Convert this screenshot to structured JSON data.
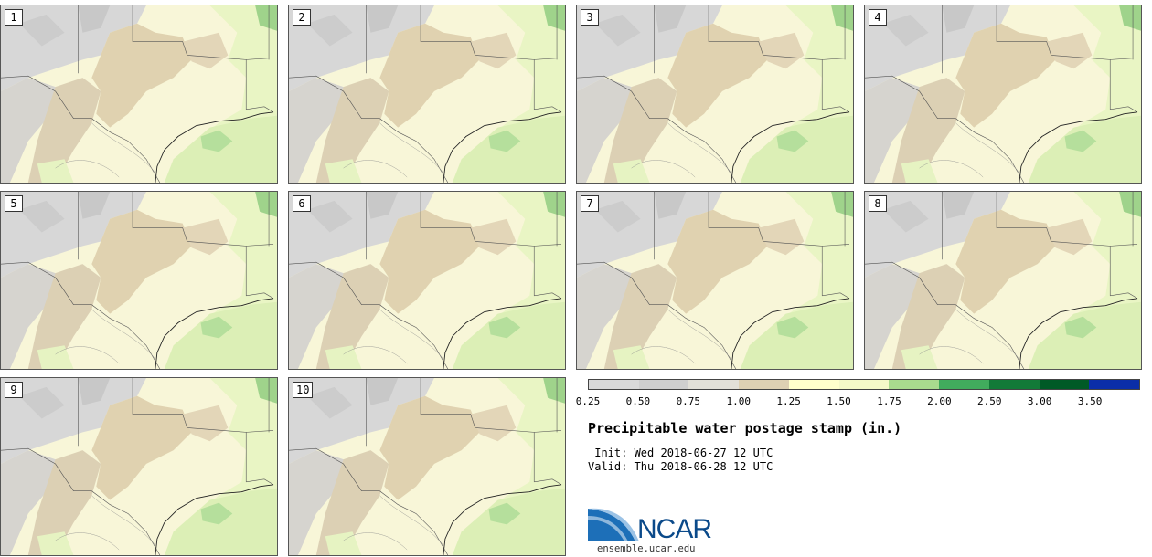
{
  "panels": [
    {
      "label": "1"
    },
    {
      "label": "2"
    },
    {
      "label": "3"
    },
    {
      "label": "4"
    },
    {
      "label": "5"
    },
    {
      "label": "6"
    },
    {
      "label": "7"
    },
    {
      "label": "8"
    },
    {
      "label": "9"
    },
    {
      "label": "10"
    }
  ],
  "legend": {
    "colors": [
      "#d9d9d9",
      "#cfcfcf",
      "#e2e0d8",
      "#ddd0b3",
      "#ffffcc",
      "#f5f9c8",
      "#a9db8e",
      "#41ab5d",
      "#127a38",
      "#005a26",
      "#0b2ea8"
    ],
    "ticks": [
      "0.25",
      "0.50",
      "0.75",
      "1.00",
      "1.25",
      "1.50",
      "1.75",
      "2.00",
      "2.50",
      "3.00",
      "3.50"
    ]
  },
  "title": "Precipitable water postage stamp (in.)",
  "init_line": " Init: Wed 2018-06-27 12 UTC",
  "valid_line": "Valid: Thu 2018-06-28 12 UTC",
  "logo": {
    "text": "NCAR",
    "url": "ensemble.ucar.edu"
  }
}
